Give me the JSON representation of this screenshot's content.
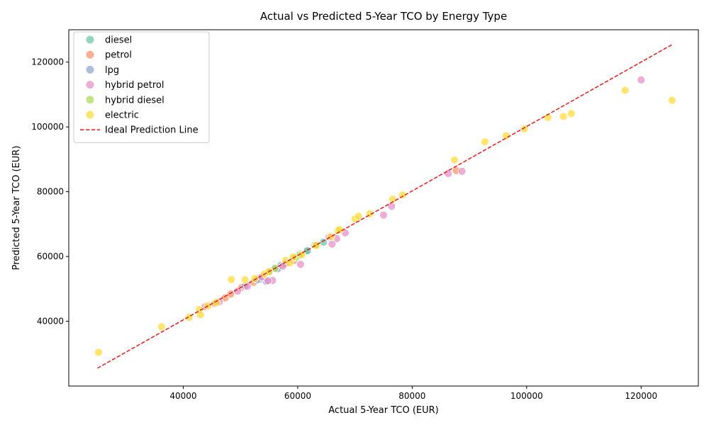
{
  "chart_data": {
    "type": "scatter",
    "title": "Actual vs Predicted 5-Year TCO by Energy Type",
    "xlabel": "Actual 5-Year TCO (EUR)",
    "ylabel": "Predicted 5-Year TCO (EUR)",
    "xlim": [
      20000,
      130000
    ],
    "ylim": [
      20000,
      130000
    ],
    "xticks": [
      40000,
      60000,
      80000,
      100000,
      120000
    ],
    "yticks": [
      40000,
      60000,
      80000,
      100000,
      120000
    ],
    "xtick_labels": [
      "40000",
      "60000",
      "80000",
      "100000",
      "120000"
    ],
    "ytick_labels": [
      "40000",
      "60000",
      "80000",
      "100000",
      "120000"
    ],
    "grid": false,
    "legend_position": "top-left",
    "ideal_line": {
      "label": "Ideal Prediction Line",
      "color": "#e41a1c",
      "from": [
        25000,
        25500
      ],
      "to": [
        125500,
        125500
      ]
    },
    "series": [
      {
        "name": "diesel",
        "color": "#66c2a5",
        "points": [
          [
            61500,
            61500
          ],
          [
            61700,
            61800
          ],
          [
            64500,
            64400
          ],
          [
            63000,
            63500
          ],
          [
            55000,
            55200
          ],
          [
            56200,
            56500
          ],
          [
            57000,
            57200
          ],
          [
            60500,
            60800
          ]
        ]
      },
      {
        "name": "petrol",
        "color": "#fc8d62",
        "points": [
          [
            47300,
            47200
          ],
          [
            48300,
            48400
          ],
          [
            52300,
            52000
          ],
          [
            53300,
            53400
          ],
          [
            57700,
            57600
          ],
          [
            59300,
            58700
          ],
          [
            87700,
            86500
          ],
          [
            45500,
            45500
          ],
          [
            50200,
            50400
          ]
        ]
      },
      {
        "name": "lpg",
        "color": "#8da0cb",
        "points": [
          [
            54500,
            52300
          ],
          [
            50800,
            50900
          ],
          [
            53400,
            53000
          ],
          [
            57900,
            57800
          ],
          [
            52900,
            52800
          ],
          [
            56500,
            56200
          ]
        ]
      },
      {
        "name": "hybrid petrol",
        "color": "#e78ac3",
        "points": [
          [
            120000,
            114500
          ],
          [
            88700,
            86300
          ],
          [
            86300,
            85600
          ],
          [
            76400,
            75500
          ],
          [
            75000,
            72800
          ],
          [
            68300,
            67300
          ],
          [
            66800,
            65500
          ],
          [
            66000,
            63800
          ],
          [
            60500,
            57600
          ],
          [
            55600,
            52600
          ],
          [
            54800,
            52500
          ],
          [
            51200,
            50800
          ],
          [
            49500,
            49300
          ],
          [
            46300,
            46000
          ],
          [
            43800,
            44500
          ],
          [
            65500,
            66000
          ],
          [
            53700,
            53700
          ],
          [
            57400,
            57000
          ]
        ]
      },
      {
        "name": "hybrid diesel",
        "color": "#a6d854",
        "points": [
          [
            60300,
            60500
          ],
          [
            59700,
            59700
          ],
          [
            56000,
            56300
          ],
          [
            63300,
            63600
          ]
        ]
      },
      {
        "name": "electric",
        "color": "#ffd92f",
        "points": [
          [
            25200,
            30400
          ],
          [
            36200,
            38300
          ],
          [
            41000,
            41200
          ],
          [
            42800,
            43600
          ],
          [
            43000,
            42000
          ],
          [
            44300,
            44800
          ],
          [
            45800,
            45800
          ],
          [
            48400,
            52900
          ],
          [
            50800,
            52800
          ],
          [
            52500,
            53200
          ],
          [
            54200,
            54600
          ],
          [
            55000,
            55300
          ],
          [
            57900,
            58800
          ],
          [
            59200,
            59800
          ],
          [
            60700,
            60500
          ],
          [
            63200,
            63400
          ],
          [
            65800,
            66100
          ],
          [
            67000,
            68000
          ],
          [
            70000,
            71600
          ],
          [
            70600,
            72400
          ],
          [
            72600,
            73200
          ],
          [
            76600,
            77700
          ],
          [
            78300,
            79000
          ],
          [
            87400,
            89800
          ],
          [
            92700,
            95400
          ],
          [
            96400,
            97300
          ],
          [
            99600,
            99400
          ],
          [
            103700,
            102900
          ],
          [
            106400,
            103200
          ],
          [
            107800,
            104100
          ],
          [
            117200,
            111300
          ],
          [
            125400,
            108200
          ],
          [
            67300,
            68300
          ],
          [
            58600,
            58000
          ]
        ]
      }
    ]
  }
}
